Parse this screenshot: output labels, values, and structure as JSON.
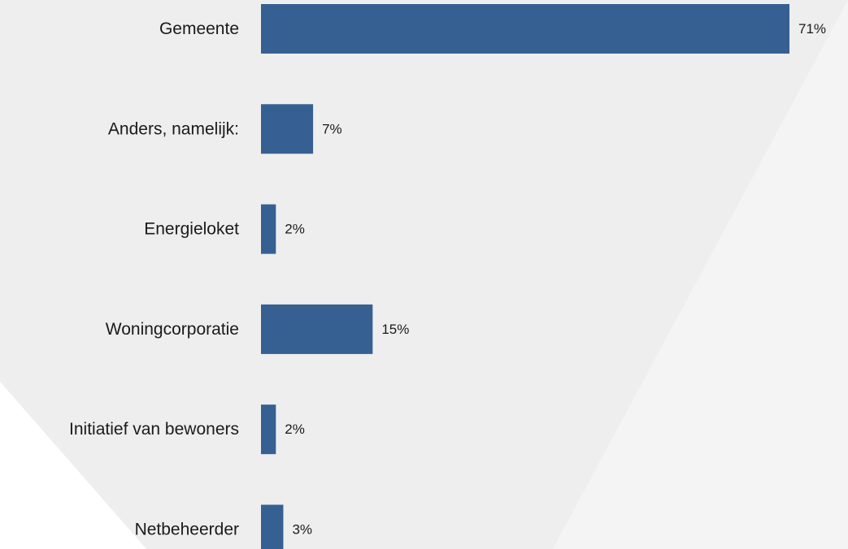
{
  "chart_data": {
    "type": "bar",
    "orientation": "horizontal",
    "categories": [
      "Gemeente",
      "Anders, namelijk:",
      "Energieloket",
      "Woningcorporatie",
      "Initiatief van bewoners",
      "Netbeheerder"
    ],
    "values": [
      71,
      7,
      2,
      15,
      2,
      3
    ],
    "value_labels": [
      "71%",
      "7%",
      "2%",
      "15%",
      "2%",
      "3%"
    ],
    "unit": "%",
    "xlim": [
      0,
      71
    ],
    "grid": false,
    "legend": "none",
    "colors": {
      "bar": "#366092",
      "text": "#1a1a1a",
      "background": "#ffffff",
      "backdrop_light": "#f4f4f4",
      "backdrop_mid": "#eeeeee"
    }
  }
}
